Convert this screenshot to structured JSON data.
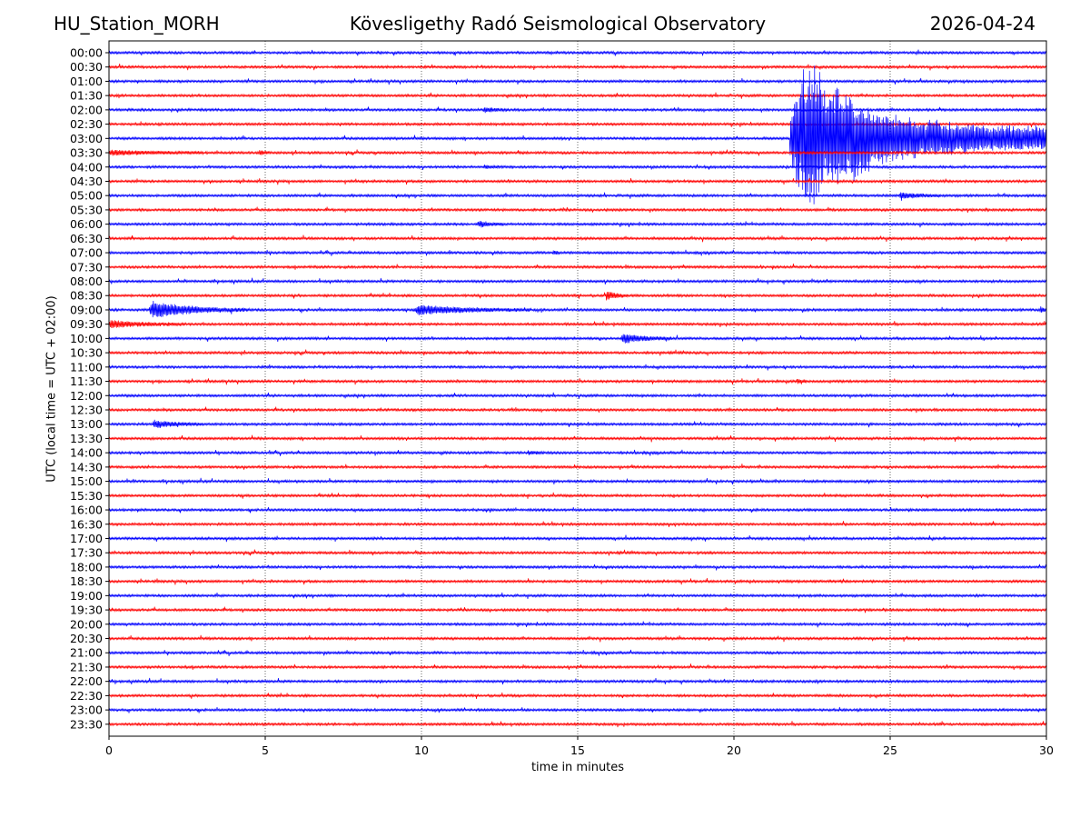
{
  "header": {
    "station": "HU_Station_MORH",
    "observatory": "Kövesligethy Radó Seismological Observatory",
    "date": "2026-04-24"
  },
  "chart_data": {
    "type": "line",
    "title": "Kövesligethy Radó Seismological Observatory",
    "xlabel": "time in minutes",
    "ylabel": "UTC (local time = UTC + 02:00)",
    "xlim": [
      0,
      30
    ],
    "x_ticks": [
      0,
      5,
      10,
      15,
      20,
      25,
      30
    ],
    "x_tick_labels": [
      "0",
      "5",
      "10",
      "15",
      "20",
      "25",
      "30"
    ],
    "grid": "vertical dotted at 5-minute ticks",
    "row_labels": [
      "00:00",
      "00:30",
      "01:00",
      "01:30",
      "02:00",
      "02:30",
      "03:00",
      "03:30",
      "04:00",
      "04:30",
      "05:00",
      "05:30",
      "06:00",
      "06:30",
      "07:00",
      "07:30",
      "08:00",
      "08:30",
      "09:00",
      "09:30",
      "10:00",
      "10:30",
      "11:00",
      "11:30",
      "12:00",
      "12:30",
      "13:00",
      "13:30",
      "14:00",
      "14:30",
      "15:00",
      "15:30",
      "16:00",
      "16:30",
      "17:00",
      "17:30",
      "18:00",
      "18:30",
      "19:00",
      "19:30",
      "20:00",
      "20:30",
      "21:00",
      "21:30",
      "22:00",
      "22:30",
      "23:00",
      "23:30"
    ],
    "colors": {
      "even_rows": "#0000ff",
      "odd_rows": "#ff0000"
    },
    "events": [
      {
        "row": "02:00",
        "start": 12.0,
        "end": 12.8,
        "amplitude": 0.3
      },
      {
        "row": "03:00",
        "start": 21.8,
        "end": 30.0,
        "amplitude": 1.4
      },
      {
        "row": "03:30",
        "start": 0.0,
        "end": 3.0,
        "amplitude": 0.3
      },
      {
        "row": "03:30",
        "start": 4.8,
        "end": 5.1,
        "amplitude": 0.35
      },
      {
        "row": "04:00",
        "start": 12.0,
        "end": 12.5,
        "amplitude": 0.15
      },
      {
        "row": "05:00",
        "start": 25.3,
        "end": 26.6,
        "amplitude": 0.4
      },
      {
        "row": "06:00",
        "start": 11.8,
        "end": 12.6,
        "amplitude": 0.4
      },
      {
        "row": "07:00",
        "start": 14.2,
        "end": 14.4,
        "amplitude": 0.4
      },
      {
        "row": "08:30",
        "start": 15.9,
        "end": 16.6,
        "amplitude": 0.6
      },
      {
        "row": "09:00",
        "start": 1.3,
        "end": 4.5,
        "amplitude": 1.3
      },
      {
        "row": "09:00",
        "start": 9.8,
        "end": 13.5,
        "amplitude": 0.7
      },
      {
        "row": "09:00",
        "start": 29.8,
        "end": 30.0,
        "amplitude": 0.6
      },
      {
        "row": "09:30",
        "start": 0.0,
        "end": 2.4,
        "amplitude": 0.5
      },
      {
        "row": "10:00",
        "start": 16.4,
        "end": 18.0,
        "amplitude": 0.7
      },
      {
        "row": "11:30",
        "start": 22.0,
        "end": 22.3,
        "amplitude": 0.25
      },
      {
        "row": "12:30",
        "start": 9.7,
        "end": 9.8,
        "amplitude": 0.15
      },
      {
        "row": "13:00",
        "start": 1.4,
        "end": 3.0,
        "amplitude": 0.5
      },
      {
        "row": "14:00",
        "start": 13.4,
        "end": 13.9,
        "amplitude": 0.2
      }
    ],
    "large_event": {
      "row": "03:00",
      "start": 21.8,
      "peak": 22.3,
      "end": 30.0
    }
  }
}
